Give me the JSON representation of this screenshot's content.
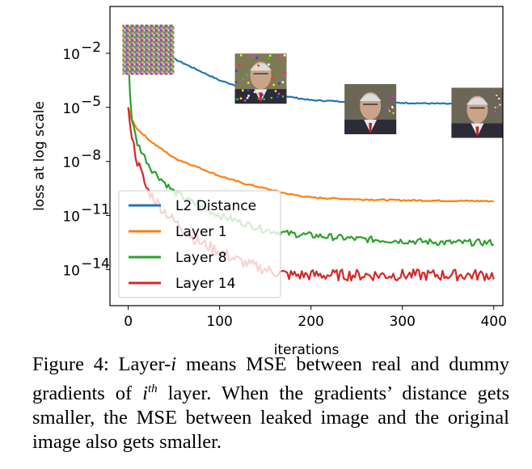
{
  "chart_data": {
    "type": "line",
    "xlabel": "iterations",
    "ylabel": "loss at log scale",
    "xlim": [
      -20,
      410
    ],
    "ylim_log10": [
      -16.0,
      0.6
    ],
    "yscale": "log",
    "x_ticks": [
      0,
      100,
      200,
      300,
      400
    ],
    "y_ticks": [
      {
        "base": "10",
        "exp": "−2",
        "log10": -2
      },
      {
        "base": "10",
        "exp": "−5",
        "log10": -5
      },
      {
        "base": "10",
        "exp": "−8",
        "log10": -8
      },
      {
        "base": "10",
        "exp": "−11",
        "log10": -11
      },
      {
        "base": "10",
        "exp": "−14",
        "log10": -14
      }
    ],
    "legend_position": "lower-left",
    "series": [
      {
        "name": "L2 Distance",
        "color": "#1f77b4",
        "x": [
          0,
          10,
          25,
          50,
          75,
          100,
          125,
          150,
          175,
          200,
          250,
          300,
          350,
          400
        ],
        "log10_y": [
          -1.0,
          -1.3,
          -1.7,
          -2.3,
          -2.9,
          -3.5,
          -3.9,
          -4.2,
          -4.4,
          -4.6,
          -4.7,
          -4.75,
          -4.8,
          -4.8
        ]
      },
      {
        "name": "Layer 1",
        "color": "#ff7f0e",
        "x": [
          0,
          3,
          10,
          25,
          50,
          75,
          100,
          125,
          150,
          175,
          200,
          250,
          300,
          350,
          400
        ],
        "log10_y": [
          -5.0,
          -5.6,
          -6.2,
          -6.9,
          -7.8,
          -8.3,
          -8.8,
          -9.2,
          -9.5,
          -9.8,
          -10.0,
          -10.1,
          -10.15,
          -10.18,
          -10.2
        ]
      },
      {
        "name": "Layer 8",
        "color": "#2ca02c",
        "x": [
          0,
          3,
          10,
          25,
          50,
          75,
          100,
          125,
          150,
          175,
          200,
          250,
          300,
          350,
          400
        ],
        "log10_y": [
          -2.0,
          -5.5,
          -7.0,
          -8.4,
          -9.7,
          -10.4,
          -11.0,
          -11.4,
          -11.8,
          -12.0,
          -12.1,
          -12.3,
          -12.4,
          -12.5,
          -12.5
        ]
      },
      {
        "name": "Layer 14",
        "color": "#d62728",
        "x": [
          0,
          3,
          10,
          20,
          35,
          50,
          75,
          100,
          125,
          150,
          175,
          200,
          250,
          300,
          350,
          400
        ],
        "log10_y": [
          -5.0,
          -6.5,
          -8.0,
          -9.5,
          -10.5,
          -11.3,
          -12.4,
          -13.0,
          -13.6,
          -14.0,
          -14.3,
          -14.3,
          -14.3,
          -14.3,
          -14.3,
          -14.3
        ]
      }
    ],
    "annotations": [
      {
        "type": "image",
        "name": "noise-image",
        "x": 22,
        "log10_y": -1.8
      },
      {
        "type": "image",
        "name": "face-image-1",
        "x": 145,
        "log10_y": -3.4
      },
      {
        "type": "image",
        "name": "face-image-2",
        "x": 265,
        "log10_y": -5.1
      },
      {
        "type": "image",
        "name": "face-image-3",
        "x": 382,
        "log10_y": -5.3
      }
    ]
  },
  "caption": {
    "label": "Figure 4: Layer-",
    "var": "i",
    "text1": " means MSE between real and dummy gradients of ",
    "var2": "i",
    "sup": "th",
    "text2": " layer. When the gradients’ distance gets smaller, the MSE between leaked image and the original image also gets smaller."
  },
  "colors": {
    "l2": "#1f77b4",
    "layer1": "#ff7f0e",
    "layer8": "#2ca02c",
    "layer14": "#d62728"
  }
}
